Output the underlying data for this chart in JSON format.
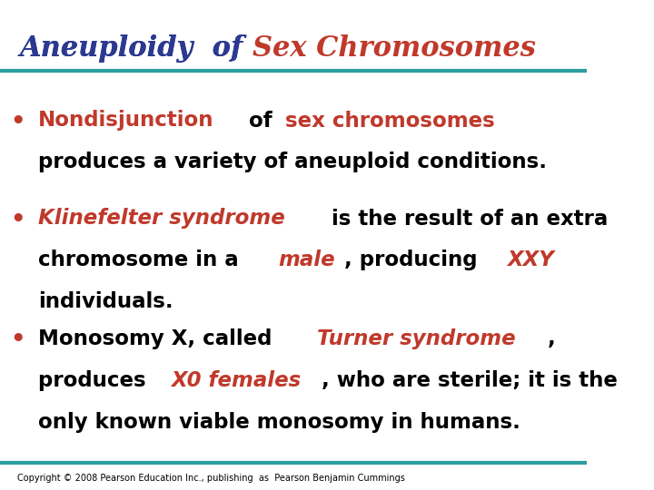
{
  "title_parts": [
    {
      "text": "Aneuploidy  of ",
      "color": "#2B3990",
      "style": "italic"
    },
    {
      "text": "Sex Chromosomes",
      "color": "#C0392B",
      "style": "italic"
    }
  ],
  "line_color": "#2E9E9E",
  "background_color": "#FFFFFF",
  "bullet_color": "#C0392B",
  "copyright": "Copyright © 2008 Pearson Education Inc., publishing  as  Pearson Benjamin Cummings",
  "copyright_fontsize": 7,
  "title_fontsize": 22,
  "body_fontsize": 16.5,
  "bullets": [
    {
      "segments": [
        {
          "text": "Nondisjunction",
          "color": "#C0392B",
          "bold": true,
          "italic": false
        },
        {
          "text": " of ",
          "color": "#000000",
          "bold": true,
          "italic": false
        },
        {
          "text": "sex chromosomes",
          "color": "#C0392B",
          "bold": true,
          "italic": false
        },
        {
          "text": "\nproduces a variety of aneuploid conditions.",
          "color": "#000000",
          "bold": true,
          "italic": false
        }
      ]
    },
    {
      "segments": [
        {
          "text": "Klinefelter syndrome",
          "color": "#C0392B",
          "bold": true,
          "italic": true
        },
        {
          "text": " is the result of an extra\nchromosome in a ",
          "color": "#000000",
          "bold": true,
          "italic": false
        },
        {
          "text": "male",
          "color": "#C0392B",
          "bold": true,
          "italic": true
        },
        {
          "text": ", producing ",
          "color": "#000000",
          "bold": true,
          "italic": false
        },
        {
          "text": "XXY",
          "color": "#C0392B",
          "bold": true,
          "italic": true
        },
        {
          "text": "\nindividuals.",
          "color": "#000000",
          "bold": true,
          "italic": false
        }
      ]
    },
    {
      "segments": [
        {
          "text": "Monosomy X, called ",
          "color": "#000000",
          "bold": true,
          "italic": false
        },
        {
          "text": "Turner syndrome",
          "color": "#C0392B",
          "bold": true,
          "italic": true
        },
        {
          "text": ",\nproduces ",
          "color": "#000000",
          "bold": true,
          "italic": false
        },
        {
          "text": "X0 females",
          "color": "#C0392B",
          "bold": true,
          "italic": true
        },
        {
          "text": ", who are sterile; it is the\nonly known viable monosomy in humans.",
          "color": "#000000",
          "bold": true,
          "italic": false
        }
      ]
    }
  ]
}
